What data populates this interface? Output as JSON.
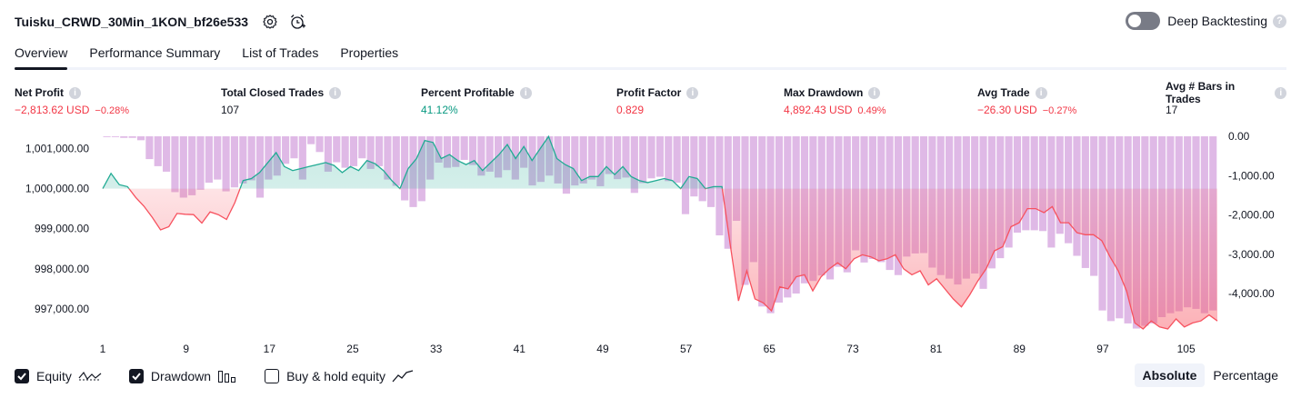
{
  "header": {
    "strategy_name": "Tuisku_CRWD_30Min_1KON_bf26e533",
    "settings_icon": "gear-icon",
    "alert_icon": "alarm-clock-plus-icon",
    "deep_backtesting_label": "Deep Backtesting",
    "deep_backtesting_enabled": false
  },
  "tabs": [
    {
      "label": "Overview",
      "active": true
    },
    {
      "label": "Performance Summary",
      "active": false
    },
    {
      "label": "List of Trades",
      "active": false
    },
    {
      "label": "Properties",
      "active": false
    }
  ],
  "metrics": [
    {
      "label": "Net Profit",
      "value": "−2,813.62 USD",
      "pct": "−0.28%",
      "tone": "neg"
    },
    {
      "label": "Total Closed Trades",
      "value": "107",
      "pct": "",
      "tone": "neu"
    },
    {
      "label": "Percent Profitable",
      "value": "41.12%",
      "pct": "",
      "tone": "pos"
    },
    {
      "label": "Profit Factor",
      "value": "0.829",
      "pct": "",
      "tone": "neg"
    },
    {
      "label": "Max Drawdown",
      "value": "4,892.43 USD",
      "pct": "0.49%",
      "tone": "neg"
    },
    {
      "label": "Avg Trade",
      "value": "−26.30 USD",
      "pct": "−0.27%",
      "tone": "neg"
    },
    {
      "label": "Avg # Bars in Trades",
      "value": "17",
      "pct": "",
      "tone": "neu"
    }
  ],
  "chart_data": {
    "type": "line",
    "equity_baseline": 1000000,
    "left_axis_ticks": [
      "1,001,000.00",
      "1,000,000.00",
      "999,000.00",
      "998,000.00",
      "997,000.00"
    ],
    "left_axis_values": [
      1001000,
      1000000,
      999000,
      998000,
      997000
    ],
    "left_ylim": [
      996500,
      1001350
    ],
    "right_axis_ticks": [
      "0.00",
      "-1,000.00",
      "-2,000.00",
      "-3,000.00",
      "-4,000.00"
    ],
    "right_axis_values": [
      0,
      -1000,
      -2000,
      -3000,
      -4000
    ],
    "right_ylim": [
      -4900,
      0
    ],
    "x_ticks": [
      "1",
      "9",
      "17",
      "25",
      "33",
      "41",
      "49",
      "57",
      "65",
      "73",
      "81",
      "89",
      "97",
      "105"
    ],
    "x_tick_values": [
      1,
      9,
      17,
      25,
      33,
      41,
      49,
      57,
      65,
      73,
      81,
      89,
      97,
      105
    ],
    "xlim": [
      1,
      108
    ],
    "series": [
      {
        "name": "Equity",
        "values": [
          1000000,
          1000380,
          1000100,
          1000050,
          999780,
          999560,
          999280,
          998970,
          999050,
          999380,
          999360,
          999350,
          999140,
          999420,
          999350,
          999230,
          999650,
          1000200,
          1000250,
          1000400,
          1000650,
          1000900,
          1000550,
          1000450,
          1000500,
          1000550,
          1000600,
          1000650,
          1000580,
          1000400,
          1000550,
          1000450,
          1000700,
          1000620,
          1000450,
          1000200,
          1000000,
          1000500,
          1000750,
          1001200,
          1001150,
          1000750,
          1000850,
          1000700,
          1000600,
          1000700,
          1000450,
          1000650,
          1000850,
          1001100,
          1000750,
          1001050,
          1000700,
          1001000,
          1001300,
          1000750,
          1000600,
          1000500,
          1000200,
          1000300,
          1000300,
          1000550,
          1000350,
          1000550,
          1000300,
          1000200,
          1000150,
          1000200,
          1000250,
          1000200,
          1000000,
          1000300,
          1000250,
          1000000,
          1000050,
          1000050,
          998600,
          997200,
          997950,
          997250,
          997150,
          996950,
          997550,
          997500,
          997800,
          997850,
          997450,
          997800,
          998000,
          998150,
          998000,
          998250,
          998350,
          998300,
          998200,
          998250,
          998350,
          998000,
          997850,
          997950,
          997600,
          997750,
          997500,
          997250,
          997050,
          997350,
          997700,
          998000,
          998450,
          998550,
          999050,
          999150,
          999500,
          999500,
          999400,
          999550,
          999150,
          999150,
          998900,
          998850,
          998850,
          998700,
          998300,
          997950,
          997450,
          996650,
          996500,
          996700,
          996550,
          996500,
          996750,
          996550,
          996650,
          996700,
          996850,
          996700
        ]
      },
      {
        "name": "Drawdown",
        "values": [
          -20,
          -20,
          -40,
          -40,
          -100,
          -580,
          -760,
          -900,
          -1420,
          -1560,
          -1500,
          -1360,
          -1180,
          -1100,
          -1400,
          -1300,
          -1200,
          -1120,
          -1560,
          -1100,
          -1000,
          -700,
          -560,
          -1100,
          -200,
          -400,
          -900,
          -660,
          -800,
          -760,
          -560,
          -830,
          -760,
          -1100,
          -1260,
          -1630,
          -1800,
          -1650,
          -1100,
          -670,
          -800,
          -780,
          -600,
          -730,
          -1000,
          -900,
          -1050,
          -860,
          -1100,
          -800,
          -1250,
          -1160,
          -1000,
          -1200,
          -1460,
          -1250,
          -1200,
          -1100,
          -1270,
          -960,
          -1090,
          -1050,
          -1440,
          -1190,
          -1070,
          -1030,
          -1140,
          -1180,
          -1980,
          -1530,
          -1650,
          -1800,
          -2520,
          -2860,
          -2150,
          -3780,
          -3200,
          -4330,
          -4500,
          -4230,
          -4100,
          -4000,
          -3740,
          -3680,
          -3540,
          -3640,
          -3320,
          -3460,
          -2900,
          -3210,
          -3120,
          -3200,
          -3400,
          -3530,
          -3060,
          -2980,
          -2970,
          -3340,
          -3530,
          -3620,
          -3770,
          -3620,
          -3490,
          -3880,
          -3360,
          -3100,
          -2830,
          -2450,
          -2390,
          -2390,
          -2410,
          -2830,
          -2480,
          -2720,
          -3040,
          -3350,
          -3550,
          -4430,
          -4700,
          -4630,
          -4760,
          -4890,
          -4820,
          -4760,
          -4600,
          -4500,
          -4450,
          -4350,
          -4390,
          -4500,
          -4430
        ]
      }
    ],
    "legend": [
      {
        "label": "Equity",
        "checked": true,
        "icon": "equity-wave-icon"
      },
      {
        "label": "Drawdown",
        "checked": true,
        "icon": "bar-columns-icon"
      },
      {
        "label": "Buy & hold equity",
        "checked": false,
        "icon": "trend-line-icon"
      }
    ],
    "equity_color_pos": "#22ab94",
    "equity_color_neg": "#f7525f",
    "drawdown_color": "#ce93d8"
  },
  "view_modes": [
    {
      "label": "Absolute",
      "active": true
    },
    {
      "label": "Percentage",
      "active": false
    }
  ]
}
